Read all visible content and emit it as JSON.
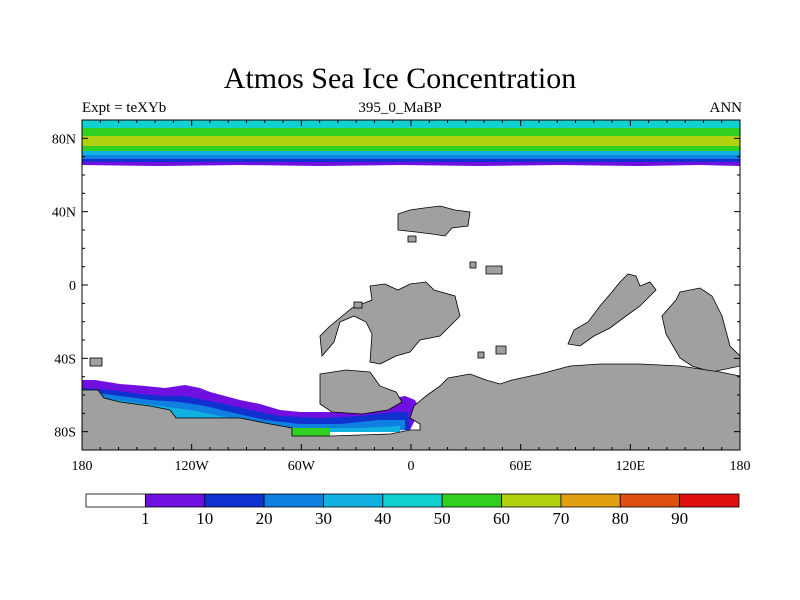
{
  "title": "Atmos Sea Ice Concentration",
  "subtitle_left": "Expt = teXYb",
  "subtitle_center": "395_0_MaBP",
  "subtitle_right": "ANN",
  "map": {
    "lon_range": [
      -180,
      180
    ],
    "lat_range": [
      -90,
      90
    ],
    "x_ticks": [
      {
        "value": -180,
        "label": "180"
      },
      {
        "value": -120,
        "label": "120W"
      },
      {
        "value": -60,
        "label": "60W"
      },
      {
        "value": 0,
        "label": "0"
      },
      {
        "value": 60,
        "label": "60E"
      },
      {
        "value": 120,
        "label": "120E"
      },
      {
        "value": 180,
        "label": "180"
      }
    ],
    "y_ticks": [
      {
        "value": 80,
        "label": "80N"
      },
      {
        "value": 40,
        "label": "40N"
      },
      {
        "value": 0,
        "label": "0"
      },
      {
        "value": -40,
        "label": "40S"
      },
      {
        "value": -80,
        "label": "80S"
      }
    ],
    "land_color": "#a0a0a0",
    "ocean_color": "#ffffff"
  },
  "colorbar": {
    "levels": [
      "1",
      "10",
      "20",
      "30",
      "40",
      "50",
      "60",
      "70",
      "80",
      "90"
    ],
    "colors": [
      "#ffffff",
      "#7010e0",
      "#1030d0",
      "#1080e0",
      "#10b0e0",
      "#10d0d0",
      "#30d020",
      "#b0d010",
      "#e0a010",
      "#e05010",
      "#e01010"
    ]
  }
}
